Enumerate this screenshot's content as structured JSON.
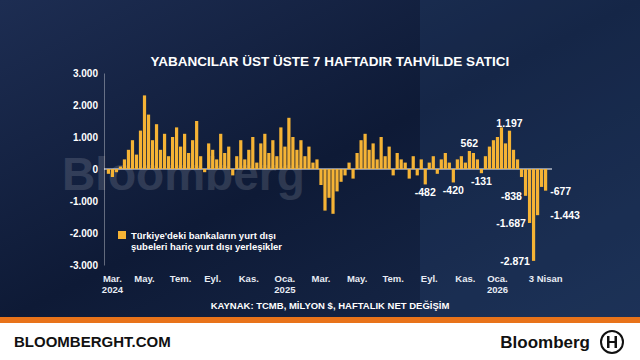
{
  "chart_data": {
    "type": "bar",
    "title": "YABANCILAR ÜST ÜSTE 7 HAFTADIR TAHVİLDE SATICI",
    "source": "KAYNAK: TCMB, MİLYON $, HAFTALIK NET DEĞİŞİM",
    "watermark": "Bloomberg",
    "footer_left": "BLOOMBERGHT.COM",
    "footer_right": "Bloomberg",
    "categories": [
      null,
      "Mar.\n2024",
      null,
      null,
      null,
      null,
      null,
      null,
      null,
      "May.",
      null,
      null,
      null,
      null,
      null,
      null,
      null,
      null,
      "Tem.",
      null,
      null,
      null,
      null,
      null,
      null,
      null,
      "Eyl.",
      null,
      null,
      null,
      null,
      null,
      null,
      null,
      null,
      "Kas.",
      null,
      null,
      null,
      null,
      null,
      null,
      null,
      null,
      "Oca.\n2025",
      null,
      null,
      null,
      null,
      null,
      null,
      null,
      null,
      "Mar.",
      null,
      null,
      null,
      null,
      null,
      null,
      null,
      null,
      "May.",
      null,
      null,
      null,
      null,
      null,
      null,
      null,
      null,
      "Tem.",
      null,
      null,
      null,
      null,
      null,
      null,
      null,
      null,
      "Eyl.",
      null,
      null,
      null,
      null,
      null,
      null,
      null,
      null,
      "Kas.",
      null,
      null,
      null,
      null,
      null,
      null,
      null,
      "Oca.\n2026",
      null,
      null,
      null,
      null,
      null,
      null,
      null,
      null,
      null,
      null,
      null,
      "3 Nisan"
    ],
    "series": [
      {
        "name": "Türkiye'deki bankaların yurt dışı\nşubeleri hariç yurt dışı yerleşikler",
        "color": "#f5b335",
        "values": [
          -150,
          -250,
          -100,
          80,
          300,
          600,
          900,
          450,
          1200,
          2300,
          1700,
          900,
          1400,
          600,
          1100,
          400,
          1000,
          1300,
          700,
          1100,
          500,
          900,
          1500,
          400,
          -100,
          800,
          600,
          300,
          1100,
          500,
          700,
          -200,
          400,
          900,
          300,
          600,
          1000,
          200,
          800,
          1100,
          500,
          900,
          400,
          1300,
          700,
          1600,
          1000,
          600,
          900,
          400,
          700,
          200,
          300,
          -500,
          -1300,
          -900,
          -1400,
          -700,
          -400,
          -200,
          200,
          -300,
          500,
          900,
          1100,
          600,
          800,
          300,
          1000,
          400,
          700,
          -200,
          500,
          300,
          200,
          -300,
          400,
          -200,
          300,
          -482,
          200,
          400,
          -150,
          300,
          500,
          200,
          -420,
          300,
          400,
          200,
          562,
          500,
          300,
          -131,
          400,
          700,
          900,
          1000,
          1300,
          800,
          1197,
          600,
          300,
          -250,
          -838,
          -1687,
          -2871,
          -1443,
          -560,
          -677
        ],
        "value_labels": [
          null,
          null,
          null,
          null,
          null,
          null,
          null,
          null,
          null,
          null,
          null,
          null,
          null,
          null,
          null,
          null,
          null,
          null,
          null,
          null,
          null,
          null,
          null,
          null,
          null,
          null,
          null,
          null,
          null,
          null,
          null,
          null,
          null,
          null,
          null,
          null,
          null,
          null,
          null,
          null,
          null,
          null,
          null,
          null,
          null,
          null,
          null,
          null,
          null,
          null,
          null,
          null,
          null,
          null,
          null,
          null,
          null,
          null,
          null,
          null,
          null,
          null,
          null,
          null,
          null,
          null,
          null,
          null,
          null,
          null,
          null,
          null,
          null,
          null,
          null,
          null,
          null,
          null,
          null,
          "-482",
          null,
          null,
          null,
          null,
          null,
          null,
          "-420",
          null,
          null,
          null,
          "562",
          null,
          null,
          "-131",
          null,
          null,
          null,
          null,
          null,
          null,
          "1.197",
          null,
          null,
          null,
          "-838",
          "-1.687",
          "-2.871",
          "-1.443",
          null,
          "-677"
        ]
      }
    ],
    "ylim": [
      -3000,
      3000
    ],
    "yticks": [
      {
        "value": -3000,
        "label": "-3.000"
      },
      {
        "value": -2000,
        "label": "-2.000"
      },
      {
        "value": -1000,
        "label": "-1.000"
      },
      0,
      {
        "value": 1000,
        "label": "1.000"
      },
      {
        "value": 2000,
        "label": "2.000"
      },
      {
        "value": 3000,
        "label": "3.000"
      }
    ],
    "grid": false,
    "legend": "bottom-left",
    "data_labels": true
  }
}
